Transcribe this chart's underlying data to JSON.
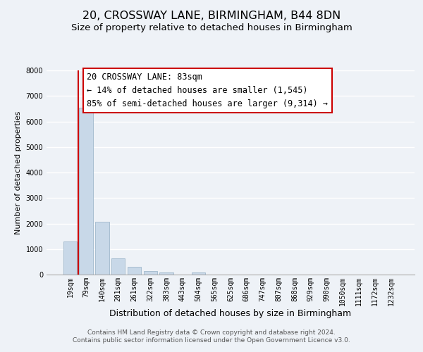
{
  "title": "20, CROSSWAY LANE, BIRMINGHAM, B44 8DN",
  "subtitle": "Size of property relative to detached houses in Birmingham",
  "xlabel": "Distribution of detached houses by size in Birmingham",
  "ylabel": "Number of detached properties",
  "bin_labels": [
    "19sqm",
    "79sqm",
    "140sqm",
    "201sqm",
    "261sqm",
    "322sqm",
    "383sqm",
    "443sqm",
    "504sqm",
    "565sqm",
    "625sqm",
    "686sqm",
    "747sqm",
    "807sqm",
    "868sqm",
    "929sqm",
    "990sqm",
    "1050sqm",
    "1111sqm",
    "1172sqm",
    "1232sqm"
  ],
  "bar_values": [
    1300,
    6550,
    2070,
    630,
    290,
    150,
    70,
    0,
    80,
    0,
    0,
    0,
    0,
    0,
    0,
    0,
    0,
    0,
    0,
    0,
    0
  ],
  "bar_color": "#c8d8e8",
  "bar_edgecolor": "#a0b8cc",
  "vline_color": "#cc0000",
  "ylim": [
    0,
    8000
  ],
  "yticks": [
    0,
    1000,
    2000,
    3000,
    4000,
    5000,
    6000,
    7000,
    8000
  ],
  "annotation_line1": "20 CROSSWAY LANE: 83sqm",
  "annotation_line2": "← 14% of detached houses are smaller (1,545)",
  "annotation_line3": "85% of semi-detached houses are larger (9,314) →",
  "footer_line1": "Contains HM Land Registry data © Crown copyright and database right 2024.",
  "footer_line2": "Contains public sector information licensed under the Open Government Licence v3.0.",
  "background_color": "#eef2f7",
  "plot_bg_color": "#eef2f7",
  "grid_color": "#ffffff",
  "title_fontsize": 11.5,
  "subtitle_fontsize": 9.5,
  "xlabel_fontsize": 9,
  "ylabel_fontsize": 8,
  "tick_fontsize": 7,
  "annotation_fontsize": 8.5,
  "footer_fontsize": 6.5
}
